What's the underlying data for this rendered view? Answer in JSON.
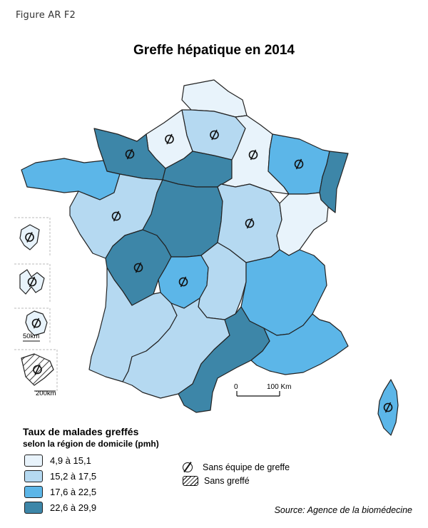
{
  "figure_label": "Figure AR F2",
  "title": "Greffe hépatique en 2014",
  "legend": {
    "title": "Taux de malades greffés",
    "subtitle": "selon la région de domicile (pmh)",
    "classes": [
      {
        "label": "4,9 à 15,1",
        "color": "#e8f3fb"
      },
      {
        "label": "15,2 à 17,5",
        "color": "#b5d9f1"
      },
      {
        "label": "17,6 à 22,5",
        "color": "#5cb6e8"
      },
      {
        "label": "22,6 à 29,9",
        "color": "#3d86a8"
      }
    ],
    "symbols": {
      "no_team": "Sans équipe de greffe",
      "no_graft": "Sans greffé"
    }
  },
  "scale": {
    "zero": "0",
    "hundred": "100 Km"
  },
  "inset_scales": {
    "small": "50km",
    "large": "200km"
  },
  "source": "Source: Agence de la biomédecine",
  "regions": [
    {
      "name": "Nord-Pas-de-Calais",
      "class": 0,
      "no_team": false
    },
    {
      "name": "Picardie",
      "class": 1,
      "no_team": true
    },
    {
      "name": "Haute-Normandie",
      "class": 0,
      "no_team": true
    },
    {
      "name": "Basse-Normandie",
      "class": 3,
      "no_team": true
    },
    {
      "name": "Bretagne",
      "class": 2,
      "no_team": false
    },
    {
      "name": "Île-de-France",
      "class": 3,
      "no_team": false
    },
    {
      "name": "Champagne-Ardenne",
      "class": 0,
      "no_team": true
    },
    {
      "name": "Lorraine",
      "class": 2,
      "no_team": true
    },
    {
      "name": "Alsace",
      "class": 3,
      "no_team": false
    },
    {
      "name": "Pays de la Loire",
      "class": 1,
      "no_team": true
    },
    {
      "name": "Centre",
      "class": 3,
      "no_team": false
    },
    {
      "name": "Bourgogne",
      "class": 1,
      "no_team": true
    },
    {
      "name": "Franche-Comté",
      "class": 0,
      "no_team": false
    },
    {
      "name": "Poitou-Charentes",
      "class": 3,
      "no_team": true
    },
    {
      "name": "Limousin",
      "class": 2,
      "no_team": true
    },
    {
      "name": "Auvergne",
      "class": 1,
      "no_team": false
    },
    {
      "name": "Rhône-Alpes",
      "class": 2,
      "no_team": false
    },
    {
      "name": "Aquitaine",
      "class": 1,
      "no_team": false
    },
    {
      "name": "Midi-Pyrénées",
      "class": 1,
      "no_team": false
    },
    {
      "name": "Languedoc-Roussillon",
      "class": 3,
      "no_team": false
    },
    {
      "name": "Provence-Alpes-Côte d'Azur",
      "class": 2,
      "no_team": false
    },
    {
      "name": "Corse",
      "class": 2,
      "no_team": true
    },
    {
      "name": "Guadeloupe",
      "class": 0,
      "no_team": true,
      "overseas": true
    },
    {
      "name": "Martinique",
      "class": 0,
      "no_team": true,
      "overseas": true
    },
    {
      "name": "La Réunion",
      "class": 0,
      "no_team": true,
      "overseas": true
    },
    {
      "name": "Guyane",
      "class": 0,
      "no_team": true,
      "no_graft": true,
      "overseas": true
    }
  ]
}
